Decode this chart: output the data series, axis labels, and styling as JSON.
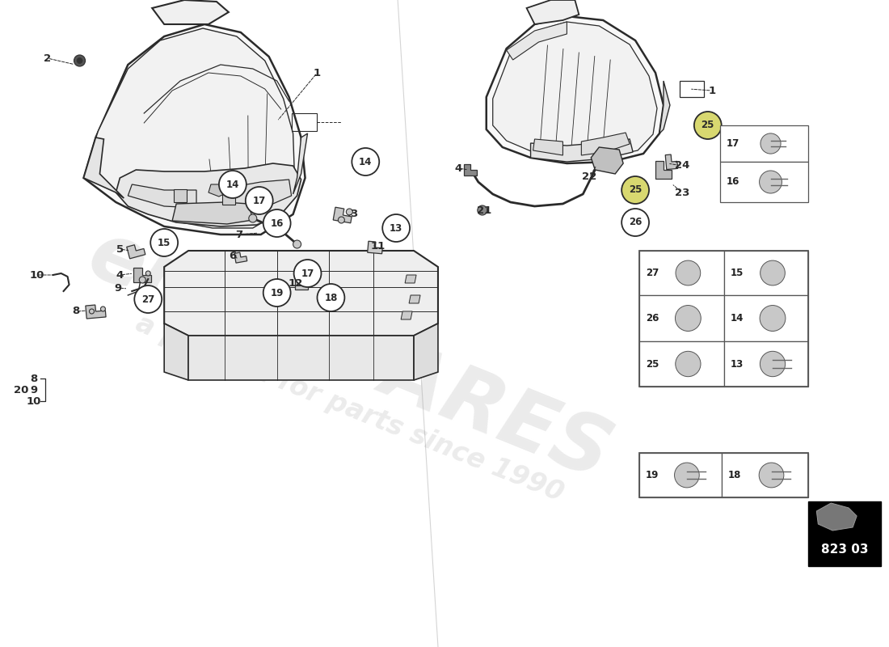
{
  "background_color": "#ffffff",
  "line_color": "#2a2a2a",
  "part_code": "823 03",
  "watermark_color": "#cccccc",
  "watermark_alpha": 0.38,
  "highlight_circle_color": "#d8d870",
  "circle_color": "#ffffff",
  "grid_line_color": "#555555"
}
